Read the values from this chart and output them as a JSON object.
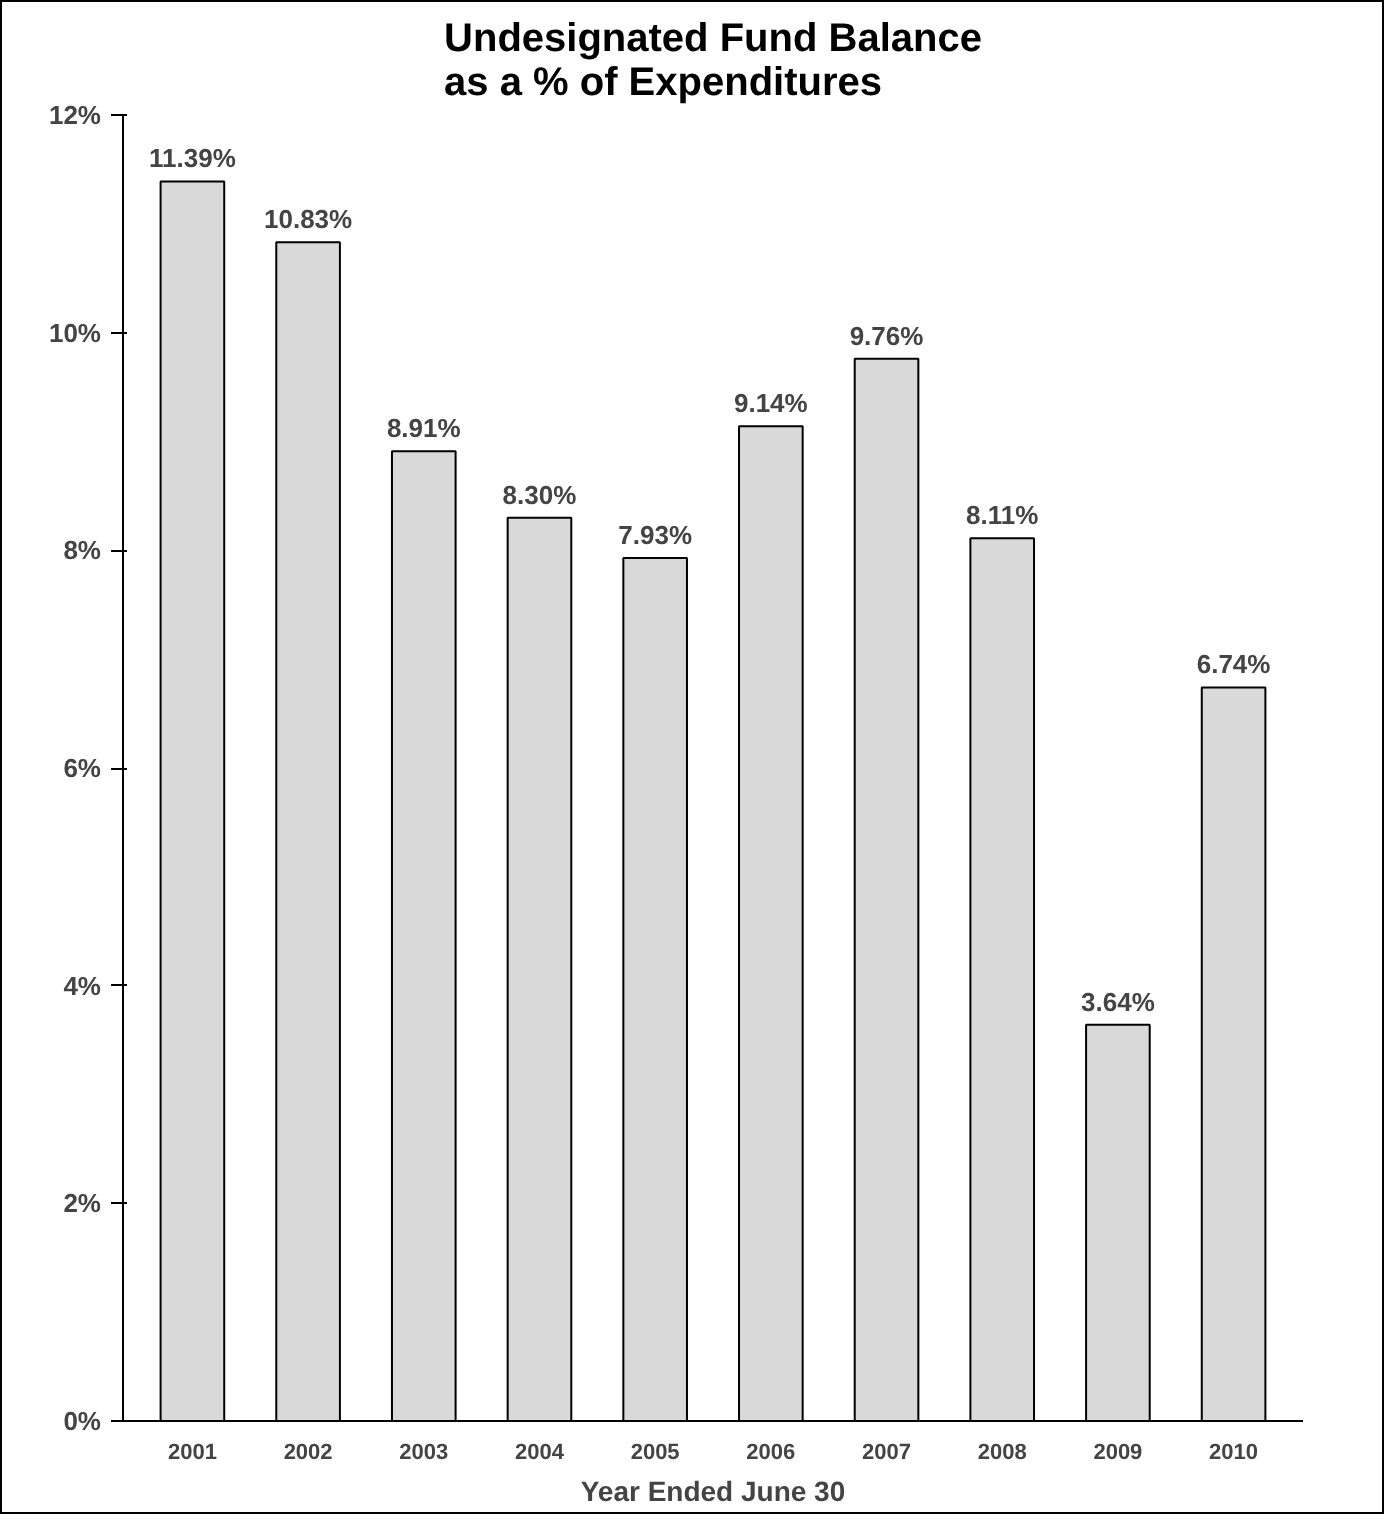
{
  "chart_data": {
    "type": "bar",
    "title": "Undesignated Fund Balance\nas a % of Expenditures",
    "xlabel": "Year Ended June 30",
    "categories": [
      "2001",
      "2002",
      "2003",
      "2004",
      "2005",
      "2006",
      "2007",
      "2008",
      "2009",
      "2010"
    ],
    "values": [
      11.39,
      10.83,
      8.91,
      8.3,
      7.93,
      9.14,
      9.76,
      8.11,
      3.64,
      6.74
    ],
    "value_labels": [
      "11.39%",
      "10.83%",
      "8.91%",
      "8.30%",
      "7.93%",
      "9.14%",
      "9.76%",
      "8.11%",
      "3.64%",
      "6.74%"
    ],
    "color": "#d9d9d9",
    "ylim": [
      0,
      12
    ],
    "yticks": [
      {
        "value": 0,
        "label": "0%"
      },
      {
        "value": 2,
        "label": "2%"
      },
      {
        "value": 4,
        "label": "4%"
      },
      {
        "value": 6,
        "label": "6%"
      },
      {
        "value": 8,
        "label": "8%"
      },
      {
        "value": 10,
        "label": "10%"
      },
      {
        "value": 12,
        "label": "12%"
      }
    ],
    "grid": false
  }
}
